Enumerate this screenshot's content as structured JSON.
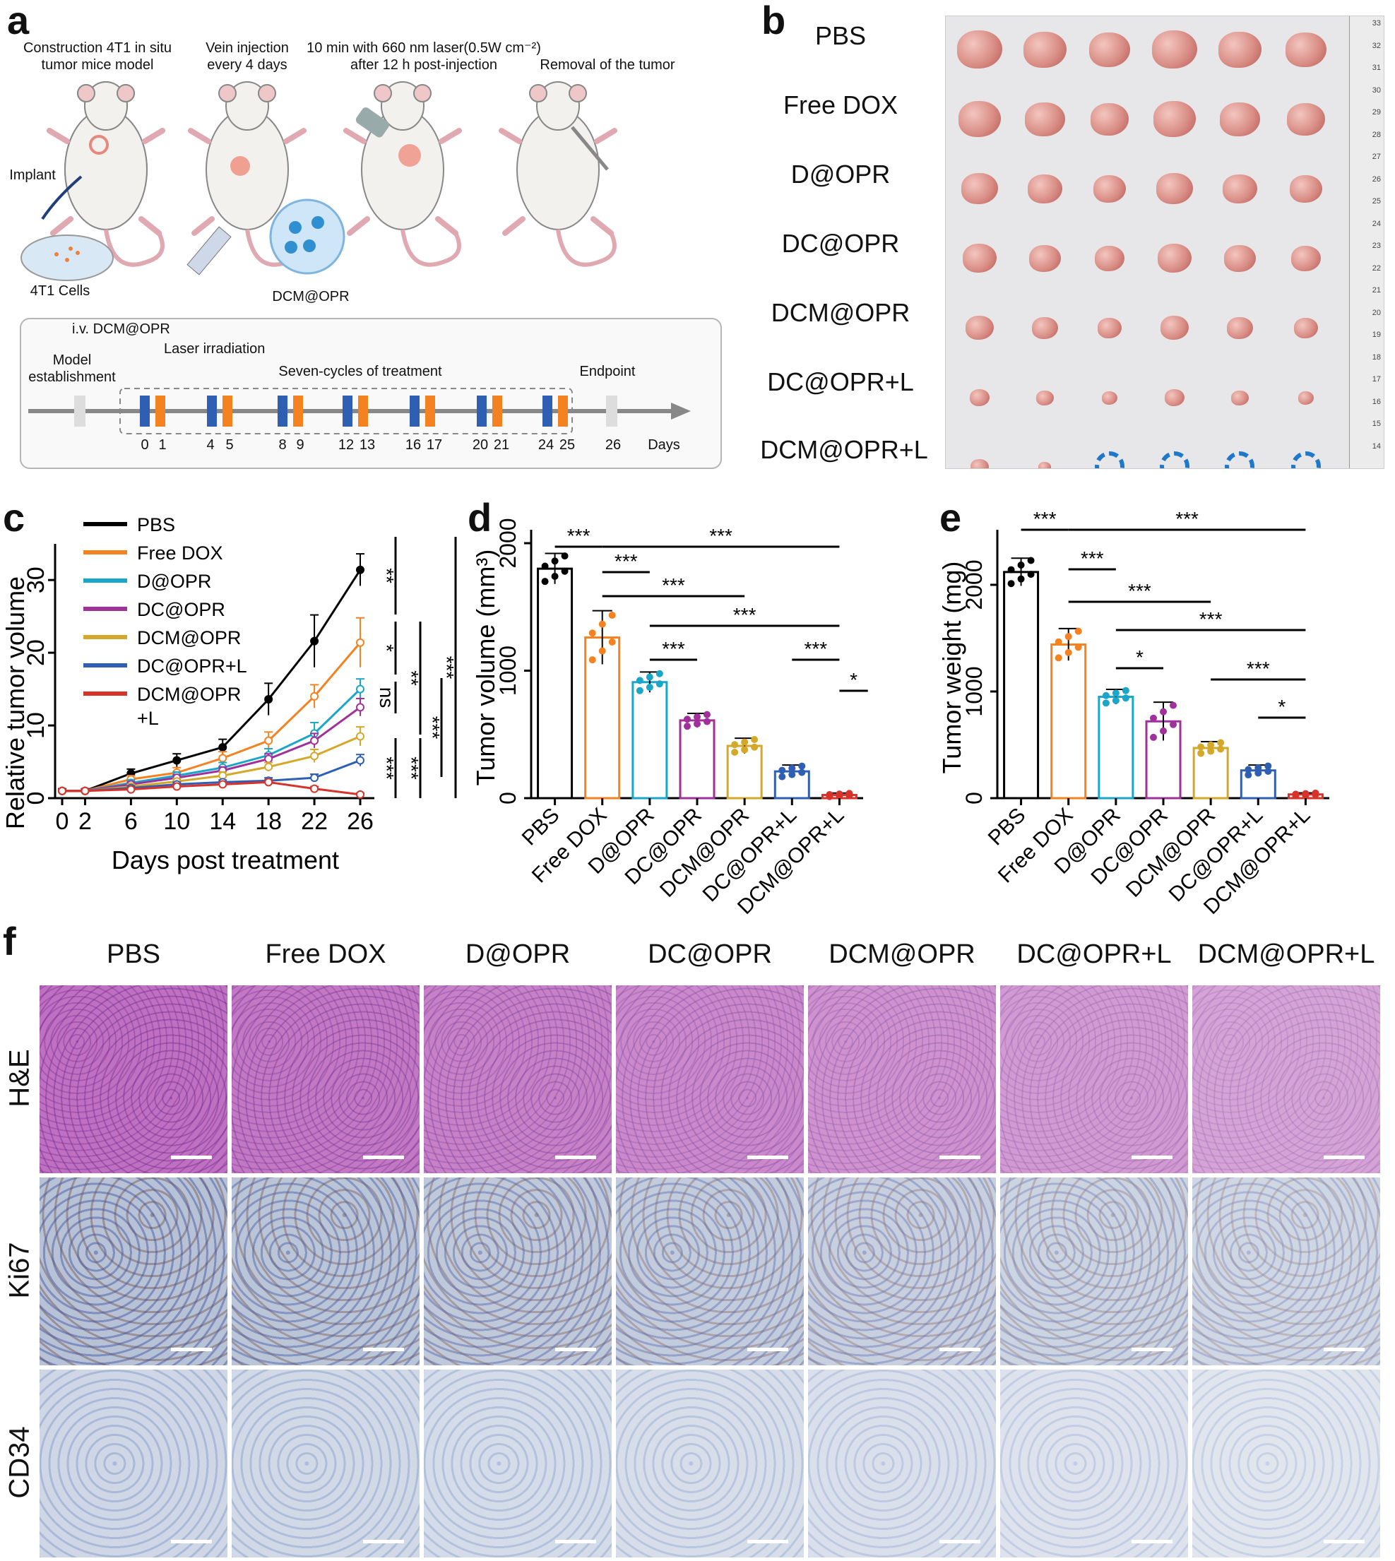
{
  "panel_labels": {
    "a": "a",
    "b": "b",
    "c": "c",
    "d": "d",
    "e": "e",
    "f": "f"
  },
  "panel_a": {
    "steps": [
      "Construction 4T1 in situ\ntumor mice model",
      "Vein injection\nevery 4 days",
      "10 min with 660 nm laser(0.5W cm⁻²)\nafter 12 h post-injection",
      "Removal of the tumor"
    ],
    "implant": "Implant",
    "cells": "4T1 Cells",
    "particle": "DCM@OPR",
    "timeline": {
      "iv": "i.v. DCM@OPR",
      "laser": "Laser irradiation",
      "model": "Model\nestablishment",
      "cycles": "Seven-cycles of treatment",
      "endpoint": "Endpoint",
      "days_label": "Days",
      "days": [
        "0",
        "1",
        "4",
        "5",
        "8",
        "9",
        "12",
        "13",
        "16",
        "17",
        "20",
        "21",
        "24",
        "25",
        "26"
      ]
    }
  },
  "panel_b": {
    "groups": [
      "PBS",
      "Free DOX",
      "D@OPR",
      "DC@OPR",
      "DCM@OPR",
      "DC@OPR+L",
      "DCM@OPR+L"
    ],
    "ruler_ticks": [
      "33",
      "32",
      "31",
      "30",
      "29",
      "28",
      "27",
      "26",
      "25",
      "24",
      "23",
      "22",
      "21",
      "20",
      "19",
      "18",
      "17",
      "16",
      "15",
      "14"
    ]
  },
  "colors": {
    "PBS": "#000000",
    "Free DOX": "#f58220",
    "D@OPR": "#1aa6c8",
    "DC@OPR": "#a0309a",
    "DCM@OPR": "#d4a82a",
    "DC@OPR+L": "#2f5fb3",
    "DCM@OPR+L": "#d6332a"
  },
  "chart_data": [
    {
      "panel": "c",
      "type": "line",
      "xlabel": "Days post treatment",
      "ylabel": "Relative tumor volume",
      "x": [
        0,
        2,
        6,
        10,
        14,
        18,
        22,
        26
      ],
      "xticks": [
        "0",
        "2",
        "6",
        "10",
        "14",
        "18",
        "22",
        "26"
      ],
      "yticks": [
        "0",
        "10",
        "20",
        "30"
      ],
      "ylim": [
        0,
        34
      ],
      "series": [
        {
          "name": "PBS",
          "values": [
            1,
            1,
            3.4,
            5.2,
            7,
            13.6,
            21.6,
            31.4
          ],
          "err": [
            0.3,
            0.3,
            0.6,
            0.9,
            1.1,
            2.2,
            3.6,
            2.2
          ]
        },
        {
          "name": "Free DOX",
          "values": [
            1,
            1,
            2.6,
            3.5,
            5.5,
            7.9,
            14,
            21.4
          ],
          "err": [
            0.2,
            0.2,
            0.5,
            0.7,
            0.9,
            1.2,
            1.6,
            3.4
          ]
        },
        {
          "name": "D@OPR",
          "values": [
            1,
            1,
            2.1,
            3.1,
            4.2,
            5.9,
            8.9,
            15
          ],
          "err": [
            0.2,
            0.2,
            0.4,
            0.5,
            0.7,
            0.9,
            1.5,
            1.4
          ]
        },
        {
          "name": "DC@OPR",
          "values": [
            1,
            1,
            1.9,
            2.8,
            3.8,
            5.4,
            7.9,
            12.5
          ],
          "err": [
            0.2,
            0.2,
            0.3,
            0.4,
            0.5,
            0.7,
            1,
            1.2
          ]
        },
        {
          "name": "DCM@OPR",
          "values": [
            1,
            1,
            1.6,
            2.3,
            3.1,
            4.3,
            5.8,
            8.5
          ],
          "err": [
            0.2,
            0.2,
            0.3,
            0.4,
            0.5,
            0.6,
            0.9,
            1.3
          ]
        },
        {
          "name": "DC@OPR+L",
          "values": [
            1,
            1,
            1.4,
            1.9,
            2.2,
            2.4,
            2.8,
            5.2
          ],
          "err": [
            0.2,
            0.2,
            0.3,
            0.3,
            0.3,
            0.4,
            0.5,
            0.8
          ]
        },
        {
          "name": "DCM@OPR+L",
          "values": [
            1,
            1,
            1.2,
            1.6,
            1.9,
            2.2,
            1.3,
            0.5
          ],
          "err": [
            0.2,
            0.2,
            0.2,
            0.3,
            0.3,
            0.3,
            0.3,
            0.2
          ]
        }
      ],
      "legend": [
        "PBS",
        "Free DOX",
        "D@OPR",
        "DC@OPR",
        "DCM@OPR",
        "DC@OPR+L",
        "DCM@OPR\n+L"
      ],
      "significance": [
        "**",
        "*",
        "ns",
        "**",
        "***",
        "***",
        "***",
        "***"
      ]
    },
    {
      "panel": "d",
      "type": "bar",
      "ylabel": "Tumor volume (mm³)",
      "categories": [
        "PBS",
        "Free DOX",
        "D@OPR",
        "DC@OPR",
        "DCM@OPR",
        "DC@OPR+L",
        "DCM@OPR+L"
      ],
      "values": [
        1800,
        1260,
        910,
        610,
        410,
        210,
        25
      ],
      "err": [
        120,
        210,
        80,
        55,
        60,
        50,
        15
      ],
      "yticks": [
        "0",
        "1000",
        "2000"
      ],
      "ylim": [
        0,
        2050
      ],
      "significance": [
        "***",
        "***",
        "***",
        "***",
        "***",
        "***",
        "***",
        "*"
      ]
    },
    {
      "panel": "e",
      "type": "bar",
      "ylabel": "Tumor weight (mg)",
      "categories": [
        "PBS",
        "Free DOX",
        "D@OPR",
        "DC@OPR",
        "DCM@OPR",
        "DC@OPR+L",
        "DCM@OPR+L"
      ],
      "values": [
        2120,
        1440,
        950,
        720,
        470,
        260,
        35
      ],
      "err": [
        130,
        150,
        70,
        180,
        60,
        50,
        15
      ],
      "yticks": [
        "0",
        "1000",
        "2000"
      ],
      "ylim": [
        0,
        2450
      ],
      "significance": [
        "***",
        "***",
        "***",
        "***",
        "***",
        "*",
        "***",
        "*"
      ]
    }
  ],
  "panel_f": {
    "columns": [
      "PBS",
      "Free DOX",
      "D@OPR",
      "DC@OPR",
      "DCM@OPR",
      "DC@OPR+L",
      "DCM@OPR+L"
    ],
    "rows": [
      "H&E",
      "Ki67",
      "CD34"
    ]
  }
}
